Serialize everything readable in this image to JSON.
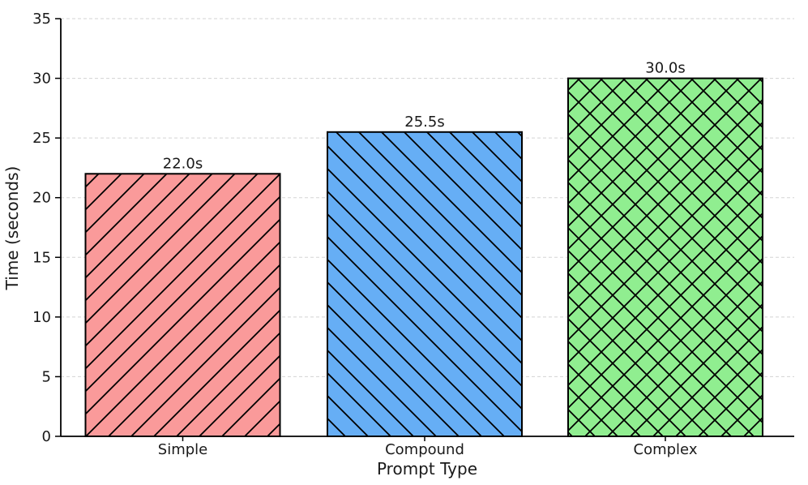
{
  "chart_data": {
    "type": "bar",
    "title": "",
    "xlabel": "Prompt Type",
    "ylabel": "Time (seconds)",
    "categories": [
      "Simple",
      "Compound",
      "Complex"
    ],
    "values": [
      22.0,
      25.5,
      30.0
    ],
    "bar_labels": [
      "22.0s",
      "25.5s",
      "30.0s"
    ],
    "ylim": [
      0,
      35
    ],
    "yticks": [
      0,
      5,
      10,
      15,
      20,
      25,
      30,
      35
    ],
    "grid": "horizontal-dashed",
    "legend": "none",
    "bar_colors": [
      "#fa9a9a",
      "#66aef5",
      "#90ee90"
    ],
    "bar_edge_color": "#000000",
    "hatches": [
      "/",
      "\\",
      "x"
    ],
    "hatch_color": "#000000",
    "grid_color": "#d3d3d3",
    "axis_color": "#000000",
    "text_color": "#1a1a1a",
    "background": "#ffffff"
  }
}
